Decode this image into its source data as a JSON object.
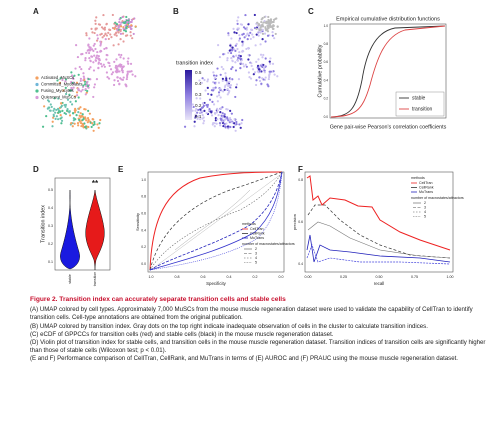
{
  "panels": {
    "a": {
      "label": "A",
      "legend": [
        "Activated_MuSCs",
        "Committed_Myoblasts",
        "Fusing_Myocytes",
        "Quiescent_MuSCs"
      ]
    },
    "b": {
      "label": "B",
      "colorbar_title": "transition index",
      "colorbar_ticks": [
        "0.5",
        "0.4",
        "0.3",
        "0.2",
        "0.1"
      ]
    },
    "c": {
      "label": "C",
      "title": "Empirical cumulative distribution functions",
      "y_label": "Cumulative probability",
      "x_label": "Gene pair-wise Pearson's correlation coefficients",
      "yticks": [
        "0.0",
        "0.2",
        "0.4",
        "0.6",
        "0.8",
        "1.0"
      ],
      "legend": [
        "stable",
        "transition"
      ]
    },
    "d": {
      "label": "D",
      "y_label": "Transition index",
      "yticks": [
        "0.1",
        "0.2",
        "0.3",
        "0.4",
        "0.5"
      ],
      "categories": [
        "stable",
        "transition"
      ],
      "significance": "**"
    },
    "e": {
      "label": "E",
      "y_label": "Sensitivity",
      "x_label": "Specificity",
      "xticks": [
        "1.0",
        "0.8",
        "0.6",
        "0.4",
        "0.2",
        "0.0"
      ],
      "yticks": [
        "0.0",
        "0.2",
        "0.4",
        "0.6",
        "0.8",
        "1.0"
      ],
      "legend_title": "methods",
      "methods": [
        "CellTran",
        "CellRank",
        "MuTrans"
      ],
      "macro_title": "number of macrostates/attractors",
      "macro": [
        "2",
        "3",
        "4",
        "5"
      ]
    },
    "f": {
      "label": "F",
      "y_label": "precision",
      "x_label": "recall",
      "xticks": [
        "0.00",
        "0.25",
        "0.50",
        "0.75",
        "1.00"
      ],
      "yticks": [
        "0.4",
        "0.6",
        "0.8"
      ],
      "legend_title": "methods",
      "methods": [
        "CellTran",
        "CellRank",
        "MuTrans"
      ],
      "macro_title": "number of macrostates/attractors",
      "macro": [
        "2",
        "3",
        "4",
        "5"
      ]
    }
  },
  "caption": {
    "title": "Figure 2. Transition index can accurately separate transition cells and stable cells",
    "paragraphs": [
      "(A) UMAP colored by cell types. Approximately 7,000 MuSCs from the mouse muscle regeneration dataset were used to validate the capability of CellTran to identify transition cells. Cell-type annotations are obtained from the original publication.",
      "(B) UMAP colored by transition index. Gray dots on the top right indicate inadequate observation of cells in the cluster to calculate transition indices.",
      "(C) eCDF of GPPCCs for transition cells (red) and stable cells (black) in the mouse muscle regeneration dataset.",
      "(D) Violin plot of transition index for stable cells, and transition cells in the mouse muscle regeneration dataset. Transition indices of transition cells are significantly higher than those of stable cells (Wilcoxon test; p < 0.01).",
      "(E and F) Performance comparison of CellTran, CellRank, and MuTrans in terms of (E) AUROC and (F) PRAUC using the mouse muscle regeneration dataset."
    ]
  }
}
